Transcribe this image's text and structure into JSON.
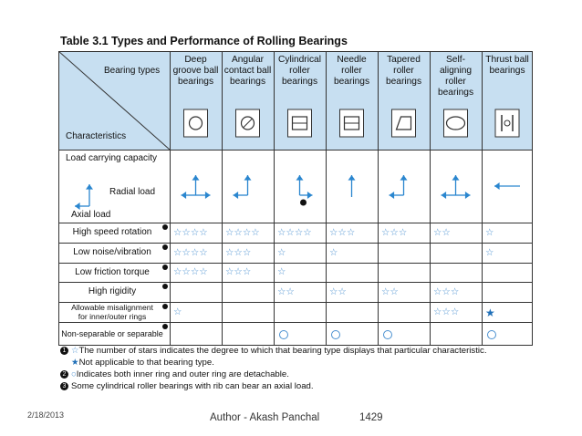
{
  "title": "Table 3.1 Types and Performance of Rolling Bearings",
  "header": {
    "bearing_types_label": "Bearing types",
    "characteristics_label": "Characteristics",
    "columns": [
      {
        "line1": "Deep",
        "line2": "groove ball",
        "line3": "bearings",
        "line4": ""
      },
      {
        "line1": "Angular",
        "line2": "contact ball",
        "line3": "bearings",
        "line4": ""
      },
      {
        "line1": "Cylindrical",
        "line2": "roller",
        "line3": "bearings",
        "line4": ""
      },
      {
        "line1": "Needle",
        "line2": "roller",
        "line3": "bearings",
        "line4": ""
      },
      {
        "line1": "Tapered",
        "line2": "roller",
        "line3": "bearings",
        "line4": ""
      },
      {
        "line1": "Self-",
        "line2": "aligning",
        "line3": "roller",
        "line4": "bearings"
      },
      {
        "line1": "Thrust ball",
        "line2": "bearings",
        "line3": "",
        "line4": ""
      }
    ]
  },
  "load_row": {
    "title": "Load carrying capacity",
    "radial_label": "Radial load",
    "axial_label": "Axial load",
    "note_badge": "3"
  },
  "rows": [
    {
      "label": "High speed rotation",
      "badge": "1",
      "cells": [
        "☆☆☆☆",
        "☆☆☆☆",
        "☆☆☆☆",
        "☆☆☆",
        "☆☆☆",
        "☆☆",
        "☆"
      ]
    },
    {
      "label": "Low noise/vibration",
      "badge": "1",
      "cells": [
        "☆☆☆☆",
        "☆☆☆",
        "☆",
        "☆",
        "",
        "",
        "☆"
      ]
    },
    {
      "label": "Low friction torque",
      "badge": "1",
      "cells": [
        "☆☆☆☆",
        "☆☆☆",
        "☆",
        "",
        "",
        "",
        ""
      ]
    },
    {
      "label": "High rigidity",
      "badge": "1",
      "cells": [
        "",
        "",
        "☆☆",
        "☆☆",
        "☆☆",
        "☆☆☆",
        ""
      ]
    },
    {
      "label": "Allowable misalignment",
      "label2": "for inner/outer rings",
      "badge": "1",
      "cells": [
        "☆",
        "",
        "",
        "",
        "",
        "☆☆☆",
        "★"
      ]
    },
    {
      "label": "Non-separable or separable",
      "badge": "2",
      "cells": [
        "",
        "",
        "○",
        "○",
        "○",
        "",
        "○"
      ]
    }
  ],
  "notes": [
    {
      "badge": "1",
      "symbol": "☆",
      "text": "The number of stars indicates the degree to which that bearing type displays that particular characteristic."
    },
    {
      "badge": "",
      "symbol": "★",
      "text": "Not applicable to that bearing type."
    },
    {
      "badge": "2",
      "symbol": "○",
      "text": "Indicates both inner ring and outer ring are detachable."
    },
    {
      "badge": "3",
      "symbol": "",
      "text": "Some cylindrical roller bearings with rib can bear an axial load."
    }
  ],
  "footer": {
    "date": "2/18/2013",
    "author": "Author - Akash Panchal",
    "page": "1429"
  },
  "colors": {
    "header_bg": "#c7dff1",
    "star": "#4a90d0",
    "arrow": "#2a86cf"
  },
  "icons": [
    "deep-groove-ball-bearing-icon",
    "angular-contact-bearing-icon",
    "cylindrical-roller-bearing-icon",
    "needle-roller-bearing-icon",
    "tapered-roller-bearing-icon",
    "self-aligning-roller-bearing-icon",
    "thrust-ball-bearing-icon"
  ]
}
